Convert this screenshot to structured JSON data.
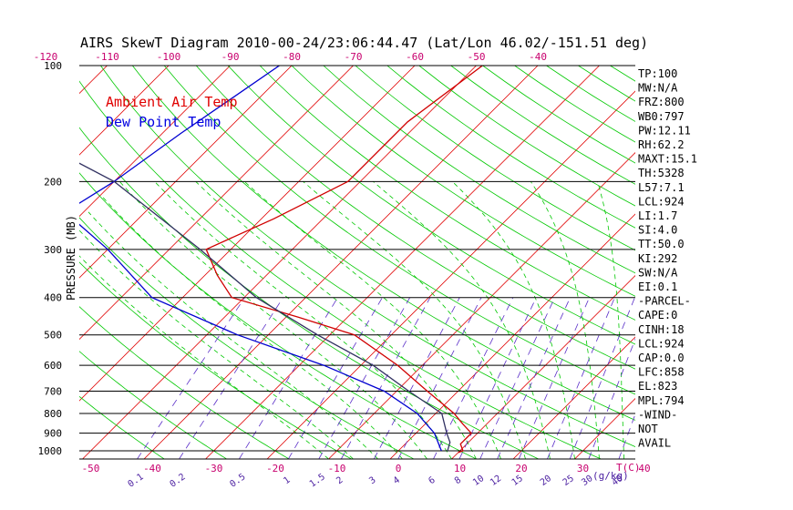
{
  "chart_data": {
    "type": "line",
    "title": "AIRS SkewT Diagram 2010-00-24/23:06:44.47 (Lat/Lon 46.02/-151.51 deg)",
    "ylabel": "PRESSURE (MB)",
    "bottom_axis_unit": "T(C)",
    "mixing_ratio_unit": "(g/kg)",
    "y_scale": "log",
    "ylim": [
      100,
      1050
    ],
    "pressure_ticks": [
      100,
      200,
      300,
      400,
      500,
      600,
      700,
      800,
      900,
      1000
    ],
    "bottom_temp_ticks": [
      -50,
      -40,
      -30,
      -20,
      -10,
      0,
      10,
      20,
      30,
      40
    ],
    "top_temp_ticks": [
      -120,
      -110,
      -100,
      -90,
      -80,
      -70,
      -60,
      -50,
      -40
    ],
    "mixing_ratio_ticks": [
      "0.1",
      "0.2",
      "0.5",
      "1",
      "1.5",
      "2",
      "3",
      "4",
      "6",
      "8",
      "10",
      "12",
      "15",
      "20",
      "25",
      "30",
      "40"
    ],
    "legend": [
      {
        "name": "Ambient Air Temp",
        "color": "#e00000"
      },
      {
        "name": "Dew Point Temp",
        "color": "#0000e0"
      }
    ],
    "series": [
      {
        "name": "Ambient Air Temp",
        "color": "#d00000",
        "points": [
          [
            100,
            -49
          ],
          [
            140,
            -52
          ],
          [
            200,
            -52
          ],
          [
            250,
            -58
          ],
          [
            300,
            -64
          ],
          [
            350,
            -58
          ],
          [
            400,
            -52
          ],
          [
            450,
            -38
          ],
          [
            500,
            -26
          ],
          [
            600,
            -14
          ],
          [
            700,
            -5
          ],
          [
            800,
            3
          ],
          [
            850,
            6
          ],
          [
            900,
            9
          ],
          [
            960,
            9
          ],
          [
            1000,
            10.5
          ],
          [
            1010,
            10
          ]
        ]
      },
      {
        "name": "Dew Point Temp",
        "color": "#0000d0",
        "points": [
          [
            100,
            -82
          ],
          [
            150,
            -87
          ],
          [
            200,
            -90
          ],
          [
            240,
            -93
          ],
          [
            300,
            -80
          ],
          [
            400,
            -65
          ],
          [
            500,
            -45
          ],
          [
            600,
            -26
          ],
          [
            700,
            -12
          ],
          [
            800,
            -3
          ],
          [
            900,
            3
          ],
          [
            1000,
            7
          ]
        ]
      },
      {
        "name": "Parcel",
        "color": "#303060",
        "points": [
          [
            100,
            -133
          ],
          [
            130,
            -124
          ],
          [
            200,
            -90
          ],
          [
            300,
            -65
          ],
          [
            400,
            -48
          ],
          [
            500,
            -32
          ],
          [
            600,
            -18
          ],
          [
            700,
            -8
          ],
          [
            800,
            1
          ],
          [
            900,
            5
          ],
          [
            950,
            7
          ],
          [
            1000,
            8
          ]
        ]
      }
    ],
    "indices": [
      "TP:100",
      "MW:N/A",
      "FRZ:800",
      "WB0:797",
      "PW:12.11",
      "RH:62.2",
      "MAXT:15.1",
      "TH:5328",
      "L57:7.1",
      "LCL:924",
      "LI:1.7",
      "SI:4.0",
      "TT:50.0",
      "KI:292",
      "SW:N/A",
      "EI:0.1",
      "-PARCEL-",
      "CAPE:0",
      "CINH:18",
      "LCL:924",
      "CAP:0.0",
      "LFC:858",
      "EL:823",
      "MPL:794",
      "-WIND-",
      "NOT",
      "AVAIL"
    ],
    "colors": {
      "isotherm": "#e00000",
      "dry_adiabat": "#00c800",
      "moist_adiabat": "#00c800",
      "mixing_ratio": "#5a2ec8",
      "isobar": "#000000",
      "title": "#000000",
      "axis_labels": "#c8006e",
      "pressure_labels": "#000000",
      "mixing_ratio_labels": "#4a1ea0"
    }
  }
}
